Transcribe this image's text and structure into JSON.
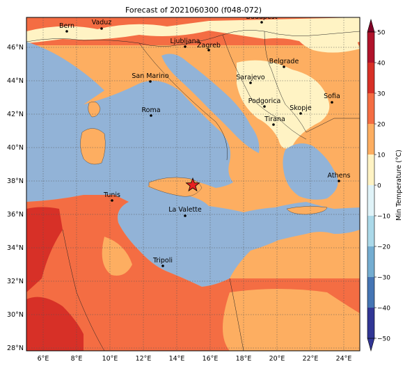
{
  "title": "Forecast of 2021060300 (f048-072)",
  "map": {
    "lat_labels": [
      "46°N",
      "44°N",
      "42°N",
      "40°N",
      "38°N",
      "36°N",
      "34°N",
      "32°N",
      "30°N",
      "28°N"
    ],
    "lon_labels": [
      "6°E",
      "8°E",
      "10°E",
      "12°E",
      "14°E",
      "16°E",
      "18°E",
      "20°E",
      "22°E",
      "24°E"
    ],
    "cities": [
      {
        "name": "Bern"
      },
      {
        "name": "Vaduz"
      },
      {
        "name": "Budapest"
      },
      {
        "name": "Ljubljana"
      },
      {
        "name": "Zagreb"
      },
      {
        "name": "Belgrade"
      },
      {
        "name": "San Marino"
      },
      {
        "name": "Sarajevo"
      },
      {
        "name": "Sofia"
      },
      {
        "name": "Podgorica"
      },
      {
        "name": "Skopje"
      },
      {
        "name": "Roma"
      },
      {
        "name": "Tirana"
      },
      {
        "name": "Athens"
      },
      {
        "name": "Tunis"
      },
      {
        "name": "La Valette"
      },
      {
        "name": "Tripoli"
      }
    ],
    "marker": {
      "type": "star",
      "color": "#e8201f"
    }
  },
  "colorbar": {
    "label": "Min Temperature (°C)",
    "ticks": [
      "50",
      "40",
      "30",
      "20",
      "10",
      "0",
      "−10",
      "−20",
      "−30",
      "−40",
      "−50"
    ],
    "colors": [
      "#800026",
      "#b0132b",
      "#d73027",
      "#f46d43",
      "#fdae61",
      "#fff3c4",
      "#e0f3f8",
      "#abd9e9",
      "#74add1",
      "#4575b4",
      "#313695"
    ]
  }
}
